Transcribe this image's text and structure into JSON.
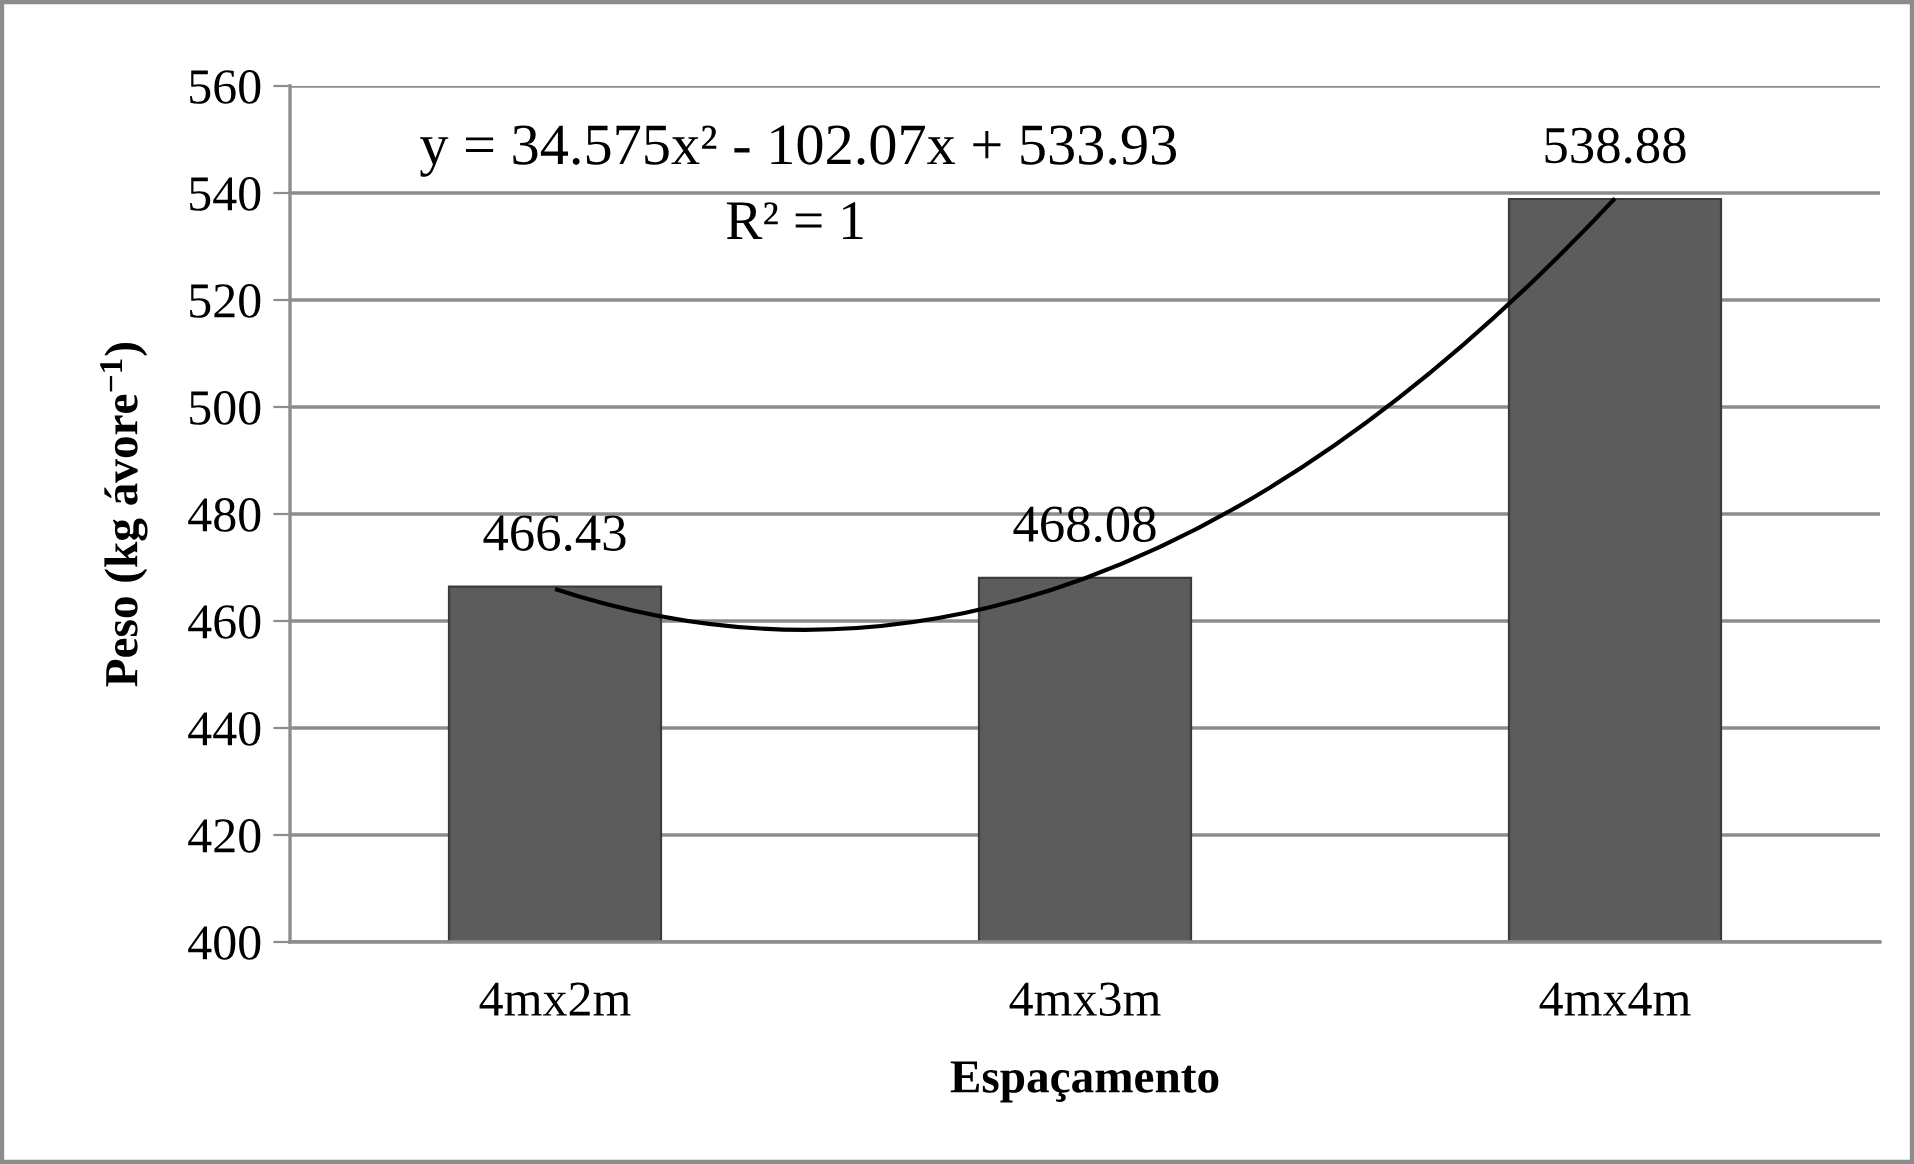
{
  "chart_data": {
    "type": "bar",
    "xlabel": "Espaçamento",
    "ylabel": "Peso (kg ávore$^{−1}$)",
    "categories": [
      "4mx2m",
      "4mx3m",
      "4mx4m"
    ],
    "series": [
      {
        "color": "#5c5c5c",
        "values": [
          466.43,
          468.08,
          538.88
        ],
        "value_labels": [
          "466.43",
          "468.08",
          "538.88"
        ]
      },
      {
        "type": "line",
        "color": "#000000",
        "values": [
          466,
          468,
          539
        ]
      }
    ],
    "ylim": [
      400,
      560
    ],
    "yticks": [
      400,
      420,
      440,
      460,
      480,
      500,
      520,
      540,
      560
    ],
    "grid": "y",
    "legend": false,
    "annotations": [
      "y = 34.575x² - 102.07x + 533.93",
      "R² = 1"
    ]
  }
}
